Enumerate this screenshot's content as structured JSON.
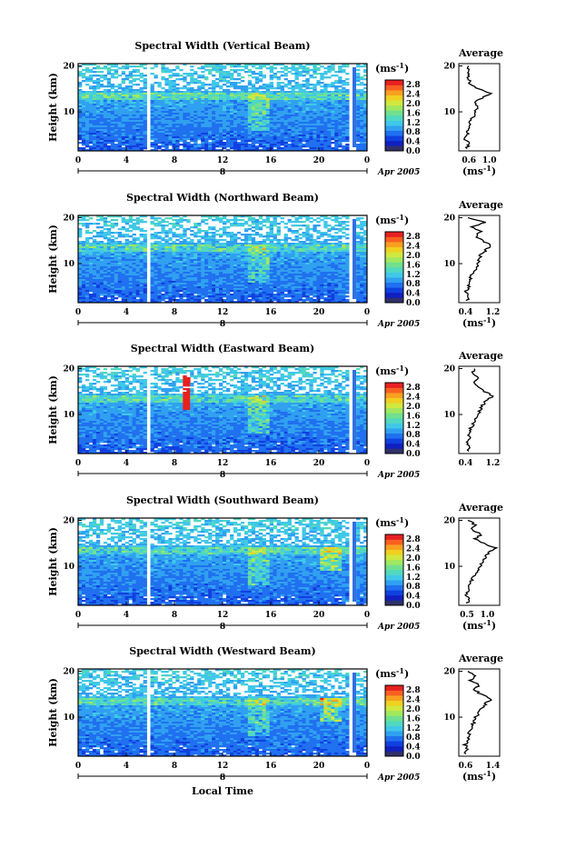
{
  "figure": {
    "xlabel": "Local Time",
    "ylabel": "Height (km)",
    "date_label": "Apr 2005",
    "day_label": "8",
    "unit": "(ms",
    "unit_sup": "-1",
    "unit_close": ")",
    "avg_title": "Average",
    "colormap": [
      "#30306a",
      "#1020c0",
      "#1040e0",
      "#2070f0",
      "#30a0f0",
      "#40c8e8",
      "#50d8c0",
      "#70e090",
      "#a0e860",
      "#d0e840",
      "#f0d020",
      "#f8a020",
      "#f86020",
      "#e82020"
    ]
  },
  "chart_data": [
    {
      "type": "heatmap",
      "title": "Spectral Width (Vertical Beam)",
      "xlabel": "",
      "ylabel": "Height (km)",
      "x_ticks": [
        "0",
        "4",
        "8",
        "12",
        "16",
        "20",
        "0"
      ],
      "y_ticks": [
        "10",
        "20"
      ],
      "xlim": [
        0,
        24
      ],
      "ylim": [
        1.5,
        20.5
      ],
      "colorbar": {
        "ticks": [
          "0.0",
          "0.4",
          "0.8",
          "1.2",
          "1.6",
          "2.0",
          "2.4",
          "2.8"
        ],
        "range": [
          0,
          3.0
        ]
      },
      "average_profile": {
        "title": "Average",
        "xlabel": "(ms-1)",
        "x_ticks": [
          "0.6",
          "1.0"
        ],
        "xlim": [
          0.4,
          1.2
        ],
        "height": [
          2,
          3,
          4,
          5,
          6,
          7,
          8,
          9,
          10,
          11,
          12,
          13,
          14,
          15,
          16,
          17,
          18,
          19,
          20
        ],
        "value": [
          0.55,
          0.6,
          0.52,
          0.58,
          0.56,
          0.6,
          0.62,
          0.7,
          0.72,
          0.75,
          0.72,
          0.85,
          1.02,
          0.78,
          0.62,
          0.6,
          0.57,
          0.59,
          0.58
        ]
      }
    },
    {
      "type": "heatmap",
      "title": "Spectral Width (Northward Beam)",
      "xlabel": "",
      "ylabel": "Height (km)",
      "x_ticks": [
        "0",
        "4",
        "8",
        "12",
        "16",
        "20",
        "0"
      ],
      "y_ticks": [
        "10",
        "20"
      ],
      "xlim": [
        0,
        24
      ],
      "ylim": [
        1.5,
        20.5
      ],
      "colorbar": {
        "ticks": [
          "0.0",
          "0.4",
          "0.8",
          "1.2",
          "1.6",
          "2.0",
          "2.4",
          "2.8"
        ],
        "range": [
          0,
          3.0
        ]
      },
      "average_profile": {
        "title": "Average",
        "xlabel": "(ms-1)",
        "x_ticks": [
          "0.4",
          "1.2"
        ],
        "xlim": [
          0.2,
          1.4
        ],
        "height": [
          2,
          3,
          4,
          5,
          6,
          7,
          8,
          9,
          10,
          11,
          12,
          13,
          14,
          15,
          16,
          17,
          18,
          19,
          20
        ],
        "value": [
          0.45,
          0.5,
          0.42,
          0.5,
          0.48,
          0.55,
          0.6,
          0.7,
          0.75,
          0.8,
          0.85,
          1.0,
          1.15,
          0.9,
          0.7,
          0.85,
          0.6,
          0.95,
          0.5
        ]
      }
    },
    {
      "type": "heatmap",
      "title": "Spectral Width (Eastward Beam)",
      "xlabel": "",
      "ylabel": "Height (km)",
      "x_ticks": [
        "0",
        "4",
        "8",
        "12",
        "16",
        "20",
        "0"
      ],
      "y_ticks": [
        "10",
        "20"
      ],
      "xlim": [
        0,
        24
      ],
      "ylim": [
        1.5,
        20.5
      ],
      "colorbar": {
        "ticks": [
          "0.0",
          "0.4",
          "0.8",
          "1.2",
          "1.6",
          "2.0",
          "2.4",
          "2.8"
        ],
        "range": [
          0,
          3.0
        ]
      },
      "average_profile": {
        "title": "Average",
        "xlabel": "",
        "x_ticks": [
          "0.4",
          "1.2"
        ],
        "xlim": [
          0.2,
          1.4
        ],
        "height": [
          2,
          3,
          4,
          5,
          6,
          7,
          8,
          9,
          10,
          11,
          12,
          13,
          14,
          15,
          16,
          17,
          18,
          19,
          20
        ],
        "value": [
          0.45,
          0.5,
          0.42,
          0.52,
          0.5,
          0.55,
          0.62,
          0.7,
          0.78,
          0.82,
          0.9,
          1.0,
          1.2,
          0.95,
          0.75,
          0.65,
          0.8,
          0.6,
          0.7
        ]
      }
    },
    {
      "type": "heatmap",
      "title": "Spectral Width (Southward Beam)",
      "xlabel": "",
      "ylabel": "Height (km)",
      "x_ticks": [
        "0",
        "4",
        "8",
        "12",
        "16",
        "20",
        "0"
      ],
      "y_ticks": [
        "10",
        "20"
      ],
      "xlim": [
        0,
        24
      ],
      "ylim": [
        1.5,
        20.5
      ],
      "colorbar": {
        "ticks": [
          "0.0",
          "0.4",
          "0.8",
          "1.2",
          "1.6",
          "2.0",
          "2.4",
          "2.8"
        ],
        "range": [
          0,
          3.0
        ]
      },
      "average_profile": {
        "title": "Average",
        "xlabel": "(ms-1)",
        "x_ticks": [
          "0.5",
          "1.0"
        ],
        "xlim": [
          0.3,
          1.3
        ],
        "height": [
          2,
          3,
          4,
          5,
          6,
          7,
          8,
          9,
          10,
          11,
          12,
          13,
          14,
          15,
          16,
          17,
          18,
          19,
          20
        ],
        "value": [
          0.5,
          0.55,
          0.48,
          0.55,
          0.58,
          0.62,
          0.68,
          0.75,
          0.82,
          0.88,
          0.95,
          1.05,
          1.2,
          0.9,
          0.7,
          0.85,
          0.6,
          0.7,
          0.55
        ]
      }
    },
    {
      "type": "heatmap",
      "title": "Spectral Width (Westward Beam)",
      "xlabel": "Local Time",
      "ylabel": "Height (km)",
      "x_ticks": [
        "0",
        "4",
        "8",
        "12",
        "16",
        "20",
        "0"
      ],
      "y_ticks": [
        "10",
        "20"
      ],
      "xlim": [
        0,
        24
      ],
      "ylim": [
        1.5,
        20.5
      ],
      "colorbar": {
        "ticks": [
          "0.0",
          "0.4",
          "0.8",
          "1.2",
          "1.6",
          "2.0",
          "2.4",
          "2.8"
        ],
        "range": [
          0,
          3.0
        ]
      },
      "average_profile": {
        "title": "Average",
        "xlabel": "(ms-1)",
        "x_ticks": [
          "0.6",
          "1.4"
        ],
        "xlim": [
          0.4,
          1.6
        ],
        "height": [
          2,
          3,
          4,
          5,
          6,
          7,
          8,
          9,
          10,
          11,
          12,
          13,
          14,
          15,
          16,
          17,
          18,
          19,
          20
        ],
        "value": [
          0.6,
          0.65,
          0.58,
          0.66,
          0.7,
          0.72,
          0.78,
          0.85,
          0.9,
          1.0,
          1.1,
          1.2,
          1.35,
          1.05,
          0.85,
          1.0,
          0.75,
          0.9,
          0.7
        ]
      }
    }
  ]
}
